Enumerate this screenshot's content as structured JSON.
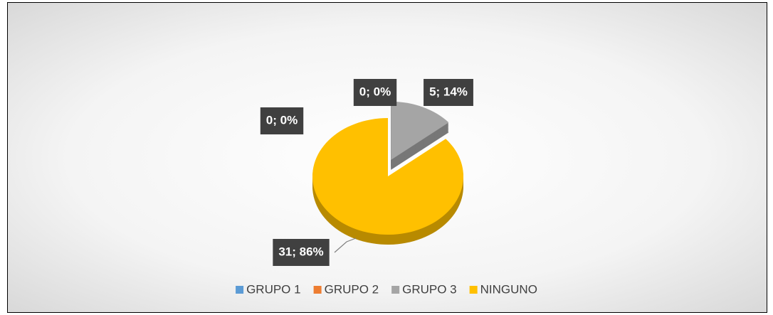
{
  "chart_data": {
    "type": "pie",
    "categories": [
      "GRUPO 1",
      "GRUPO 2",
      "GRUPO 3",
      "NINGUNO"
    ],
    "values": [
      0,
      0,
      5,
      31
    ],
    "value_labels": [
      "0; 0%",
      "0; 0%",
      "5; 14%",
      "31; 86%"
    ],
    "colors": [
      "#5b9bd5",
      "#ed7d31",
      "#a5a5a5",
      "#ffc000"
    ],
    "legend": "bottom"
  }
}
